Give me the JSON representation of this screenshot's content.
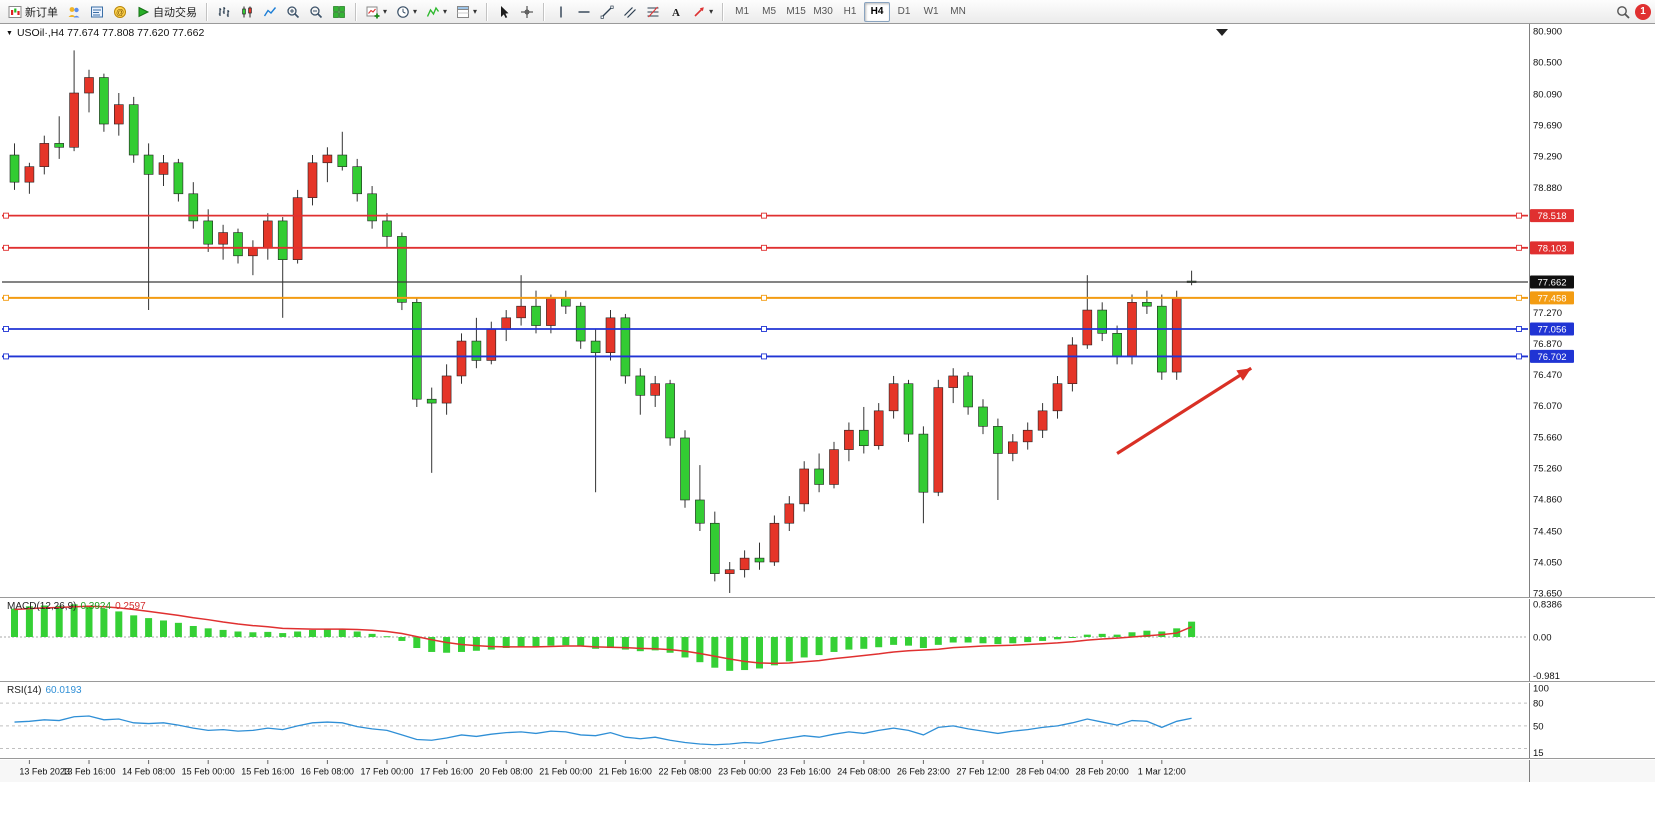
{
  "toolbar": {
    "new_order_label": "新订单",
    "auto_trading_label": "自动交易",
    "timeframes": [
      "M1",
      "M5",
      "M15",
      "M30",
      "H1",
      "H4",
      "D1",
      "W1",
      "MN"
    ],
    "active_timeframe": "H4",
    "notification_count": "1"
  },
  "glyphs": {
    "chevron_down": "▾",
    "expand_triangle": "▼"
  },
  "panes": {
    "symbol_line": "USOil·,H4 77.674 77.808 77.620 77.662",
    "macd_name": "MACD(12,26,9)",
    "macd_main_value": "0.3924",
    "macd_signal_value": "0.2597",
    "rsi_name": "RSI(14)",
    "rsi_value": "60.0193"
  },
  "chart_data": {
    "type": "candlestick",
    "symbol": "USOil",
    "timeframe": "H4",
    "current_ohlc": {
      "open": 77.674,
      "high": 77.808,
      "low": 77.62,
      "close": 77.662
    },
    "price_max": 80.9,
    "price_min": 73.65,
    "up_color": "#e53528",
    "down_color": "#33cc33",
    "y_axis_labels": [
      "80.900",
      "80.500",
      "80.090",
      "79.690",
      "79.290",
      "78.880",
      "77.270",
      "76.870",
      "76.470",
      "76.070",
      "75.660",
      "75.260",
      "74.860",
      "74.450",
      "74.050",
      "73.650"
    ],
    "x_axis_labels": [
      "13 Feb 2023",
      "13 Feb 16:00",
      "14 Feb 08:00",
      "15 Feb 00:00",
      "15 Feb 16:00",
      "16 Feb 08:00",
      "17 Feb 00:00",
      "17 Feb 16:00",
      "20 Feb 08:00",
      "21 Feb 00:00",
      "21 Feb 16:00",
      "22 Feb 08:00",
      "23 Feb 00:00",
      "23 Feb 16:00",
      "24 Feb 08:00",
      "26 Feb 23:00",
      "27 Feb 12:00",
      "28 Feb 04:00",
      "28 Feb 20:00",
      "1 Mar 12:00"
    ],
    "candles": [
      [
        79.3,
        79.45,
        78.85,
        78.95
      ],
      [
        78.95,
        79.2,
        78.8,
        79.15
      ],
      [
        79.15,
        79.55,
        79.05,
        79.45
      ],
      [
        79.45,
        79.8,
        79.25,
        79.4
      ],
      [
        79.4,
        80.65,
        79.35,
        80.1
      ],
      [
        80.1,
        80.4,
        79.85,
        80.3
      ],
      [
        80.3,
        80.35,
        79.6,
        79.7
      ],
      [
        79.7,
        80.1,
        79.55,
        79.95
      ],
      [
        79.95,
        80.05,
        79.2,
        79.3
      ],
      [
        79.3,
        79.45,
        77.3,
        79.05
      ],
      [
        79.05,
        79.3,
        78.9,
        79.2
      ],
      [
        79.2,
        79.25,
        78.7,
        78.8
      ],
      [
        78.8,
        78.95,
        78.35,
        78.45
      ],
      [
        78.45,
        78.6,
        78.05,
        78.15
      ],
      [
        78.15,
        78.4,
        77.95,
        78.3
      ],
      [
        78.3,
        78.35,
        77.9,
        78.0
      ],
      [
        78.0,
        78.2,
        77.75,
        78.1
      ],
      [
        78.1,
        78.55,
        77.95,
        78.45
      ],
      [
        78.45,
        78.5,
        77.2,
        77.95
      ],
      [
        77.95,
        78.85,
        77.9,
        78.75
      ],
      [
        78.75,
        79.3,
        78.65,
        79.2
      ],
      [
        79.2,
        79.4,
        78.95,
        79.3
      ],
      [
        79.3,
        79.6,
        79.1,
        79.15
      ],
      [
        79.15,
        79.25,
        78.7,
        78.8
      ],
      [
        78.8,
        78.9,
        78.35,
        78.45
      ],
      [
        78.45,
        78.55,
        78.1,
        78.25
      ],
      [
        78.25,
        78.3,
        77.3,
        77.4
      ],
      [
        77.4,
        77.45,
        76.05,
        76.15
      ],
      [
        76.15,
        76.3,
        75.2,
        76.1
      ],
      [
        76.1,
        76.6,
        75.95,
        76.45
      ],
      [
        76.45,
        77.0,
        76.35,
        76.9
      ],
      [
        76.9,
        77.2,
        76.55,
        76.65
      ],
      [
        76.65,
        77.15,
        76.6,
        77.05
      ],
      [
        77.05,
        77.3,
        76.9,
        77.2
      ],
      [
        77.2,
        77.75,
        77.1,
        77.35
      ],
      [
        77.35,
        77.55,
        77.0,
        77.1
      ],
      [
        77.1,
        77.5,
        77.0,
        77.45
      ],
      [
        77.45,
        77.55,
        77.25,
        77.35
      ],
      [
        77.35,
        77.4,
        76.8,
        76.9
      ],
      [
        76.9,
        77.05,
        74.95,
        76.75
      ],
      [
        76.75,
        77.3,
        76.65,
        77.2
      ],
      [
        77.2,
        77.25,
        76.35,
        76.45
      ],
      [
        76.45,
        76.55,
        75.95,
        76.2
      ],
      [
        76.2,
        76.45,
        76.05,
        76.35
      ],
      [
        76.35,
        76.4,
        75.55,
        75.65
      ],
      [
        75.65,
        75.75,
        74.75,
        74.85
      ],
      [
        74.85,
        75.3,
        74.45,
        74.55
      ],
      [
        74.55,
        74.7,
        73.8,
        73.9
      ],
      [
        73.9,
        74.05,
        73.65,
        73.95
      ],
      [
        73.95,
        74.2,
        73.85,
        74.1
      ],
      [
        74.1,
        74.3,
        73.95,
        74.05
      ],
      [
        74.05,
        74.65,
        74.0,
        74.55
      ],
      [
        74.55,
        74.9,
        74.45,
        74.8
      ],
      [
        74.8,
        75.35,
        74.7,
        75.25
      ],
      [
        75.25,
        75.45,
        74.95,
        75.05
      ],
      [
        75.05,
        75.6,
        75.0,
        75.5
      ],
      [
        75.5,
        75.85,
        75.35,
        75.75
      ],
      [
        75.75,
        76.05,
        75.45,
        75.55
      ],
      [
        75.55,
        76.1,
        75.5,
        76.0
      ],
      [
        76.0,
        76.45,
        75.9,
        76.35
      ],
      [
        76.35,
        76.4,
        75.6,
        75.7
      ],
      [
        75.7,
        75.8,
        74.55,
        74.95
      ],
      [
        74.95,
        76.4,
        74.9,
        76.3
      ],
      [
        76.3,
        76.55,
        76.1,
        76.45
      ],
      [
        76.45,
        76.5,
        75.95,
        76.05
      ],
      [
        76.05,
        76.15,
        75.7,
        75.8
      ],
      [
        75.8,
        75.9,
        74.85,
        75.45
      ],
      [
        75.45,
        75.7,
        75.35,
        75.6
      ],
      [
        75.6,
        75.85,
        75.5,
        75.75
      ],
      [
        75.75,
        76.1,
        75.65,
        76.0
      ],
      [
        76.0,
        76.45,
        75.9,
        76.35
      ],
      [
        76.35,
        76.95,
        76.25,
        76.85
      ],
      [
        76.85,
        77.75,
        76.8,
        77.3
      ],
      [
        77.3,
        77.4,
        76.9,
        77.0
      ],
      [
        77.0,
        77.1,
        76.6,
        76.7
      ],
      [
        76.7,
        77.5,
        76.6,
        77.4
      ],
      [
        77.4,
        77.55,
        77.25,
        77.35
      ],
      [
        77.35,
        77.5,
        76.4,
        76.5
      ],
      [
        76.5,
        77.55,
        76.4,
        77.45
      ],
      [
        77.674,
        77.808,
        77.62,
        77.662
      ]
    ],
    "hlines": [
      {
        "price": 78.518,
        "label": "78.518",
        "color": "#e03030",
        "width": 1.8,
        "handles": true,
        "badge": "#e03030"
      },
      {
        "price": 78.103,
        "label": "78.103",
        "color": "#e03030",
        "width": 1.8,
        "handles": true,
        "badge": "#e03030"
      },
      {
        "price": 77.662,
        "label": "77.662",
        "color": "#3a3a3a",
        "width": 1.2,
        "handles": false,
        "badge": "#101010"
      },
      {
        "price": 77.458,
        "label": "77.458",
        "color": "#f39c12",
        "width": 2.0,
        "handles": true,
        "badge": "#f39c12"
      },
      {
        "price": 77.056,
        "label": "77.056",
        "color": "#2034d4",
        "width": 1.8,
        "handles": true,
        "badge": "#2034d4"
      },
      {
        "price": 76.702,
        "label": "76.702",
        "color": "#2034d4",
        "width": 1.8,
        "handles": true,
        "badge": "#2034d4"
      }
    ],
    "arrow": {
      "from_bar": 74,
      "from_price": 75.45,
      "to_bar": 83,
      "to_price": 76.55,
      "color": "#d93025"
    },
    "macd": {
      "histogram_color": "#35d035",
      "signal_color": "#e03030",
      "scale_labels": [
        {
          "text": "0.8386",
          "value": 0.8386
        },
        {
          "text": "0.00",
          "value": 0
        },
        {
          "text": "-0.981",
          "value": -0.981
        }
      ],
      "histogram": [
        0.72,
        0.78,
        0.8,
        0.79,
        0.83,
        0.8,
        0.72,
        0.65,
        0.55,
        0.48,
        0.42,
        0.36,
        0.28,
        0.22,
        0.18,
        0.14,
        0.12,
        0.13,
        0.1,
        0.14,
        0.18,
        0.2,
        0.19,
        0.14,
        0.08,
        0.02,
        -0.1,
        -0.28,
        -0.38,
        -0.4,
        -0.38,
        -0.35,
        -0.32,
        -0.28,
        -0.24,
        -0.24,
        -0.22,
        -0.21,
        -0.24,
        -0.3,
        -0.28,
        -0.32,
        -0.36,
        -0.34,
        -0.4,
        -0.52,
        -0.64,
        -0.78,
        -0.86,
        -0.84,
        -0.8,
        -0.72,
        -0.62,
        -0.52,
        -0.46,
        -0.38,
        -0.32,
        -0.3,
        -0.26,
        -0.2,
        -0.22,
        -0.28,
        -0.2,
        -0.14,
        -0.14,
        -0.16,
        -0.18,
        -0.16,
        -0.13,
        -0.1,
        -0.06,
        -0.02,
        0.06,
        0.08,
        0.06,
        0.12,
        0.16,
        0.14,
        0.22,
        0.39
      ],
      "signal": [
        0.7,
        0.72,
        0.74,
        0.75,
        0.77,
        0.78,
        0.77,
        0.74,
        0.7,
        0.65,
        0.6,
        0.55,
        0.49,
        0.44,
        0.38,
        0.33,
        0.29,
        0.26,
        0.22,
        0.21,
        0.2,
        0.2,
        0.2,
        0.19,
        0.17,
        0.14,
        0.09,
        0.01,
        -0.07,
        -0.14,
        -0.19,
        -0.22,
        -0.24,
        -0.25,
        -0.25,
        -0.25,
        -0.24,
        -0.23,
        -0.23,
        -0.25,
        -0.26,
        -0.27,
        -0.29,
        -0.3,
        -0.32,
        -0.36,
        -0.42,
        -0.49,
        -0.56,
        -0.62,
        -0.66,
        -0.67,
        -0.66,
        -0.63,
        -0.6,
        -0.55,
        -0.51,
        -0.47,
        -0.43,
        -0.38,
        -0.35,
        -0.33,
        -0.31,
        -0.27,
        -0.25,
        -0.23,
        -0.22,
        -0.21,
        -0.19,
        -0.17,
        -0.15,
        -0.12,
        -0.08,
        -0.05,
        -0.03,
        0.0,
        0.03,
        0.06,
        0.1,
        0.26
      ]
    },
    "rsi": {
      "line_color": "#2f8fd6",
      "levels": [
        80,
        50,
        20
      ],
      "scale_labels": [
        {
          "text": "100",
          "value": 100
        },
        {
          "text": "80",
          "value": 80
        },
        {
          "text": "50",
          "value": 50
        },
        {
          "text": "15",
          "value": 15
        }
      ],
      "values": [
        55,
        56,
        58,
        57,
        62,
        63,
        58,
        59,
        54,
        53,
        54,
        51,
        47,
        44,
        45,
        43,
        44,
        47,
        45,
        50,
        54,
        55,
        54,
        49,
        46,
        44,
        38,
        32,
        31,
        34,
        38,
        36,
        39,
        41,
        42,
        40,
        43,
        42,
        38,
        37,
        41,
        35,
        33,
        35,
        31,
        28,
        26,
        25,
        26,
        28,
        27,
        31,
        34,
        37,
        35,
        39,
        42,
        40,
        44,
        47,
        44,
        38,
        48,
        50,
        46,
        43,
        40,
        43,
        45,
        48,
        50,
        54,
        59,
        55,
        51,
        57,
        56,
        48,
        56,
        60.02
      ]
    }
  }
}
